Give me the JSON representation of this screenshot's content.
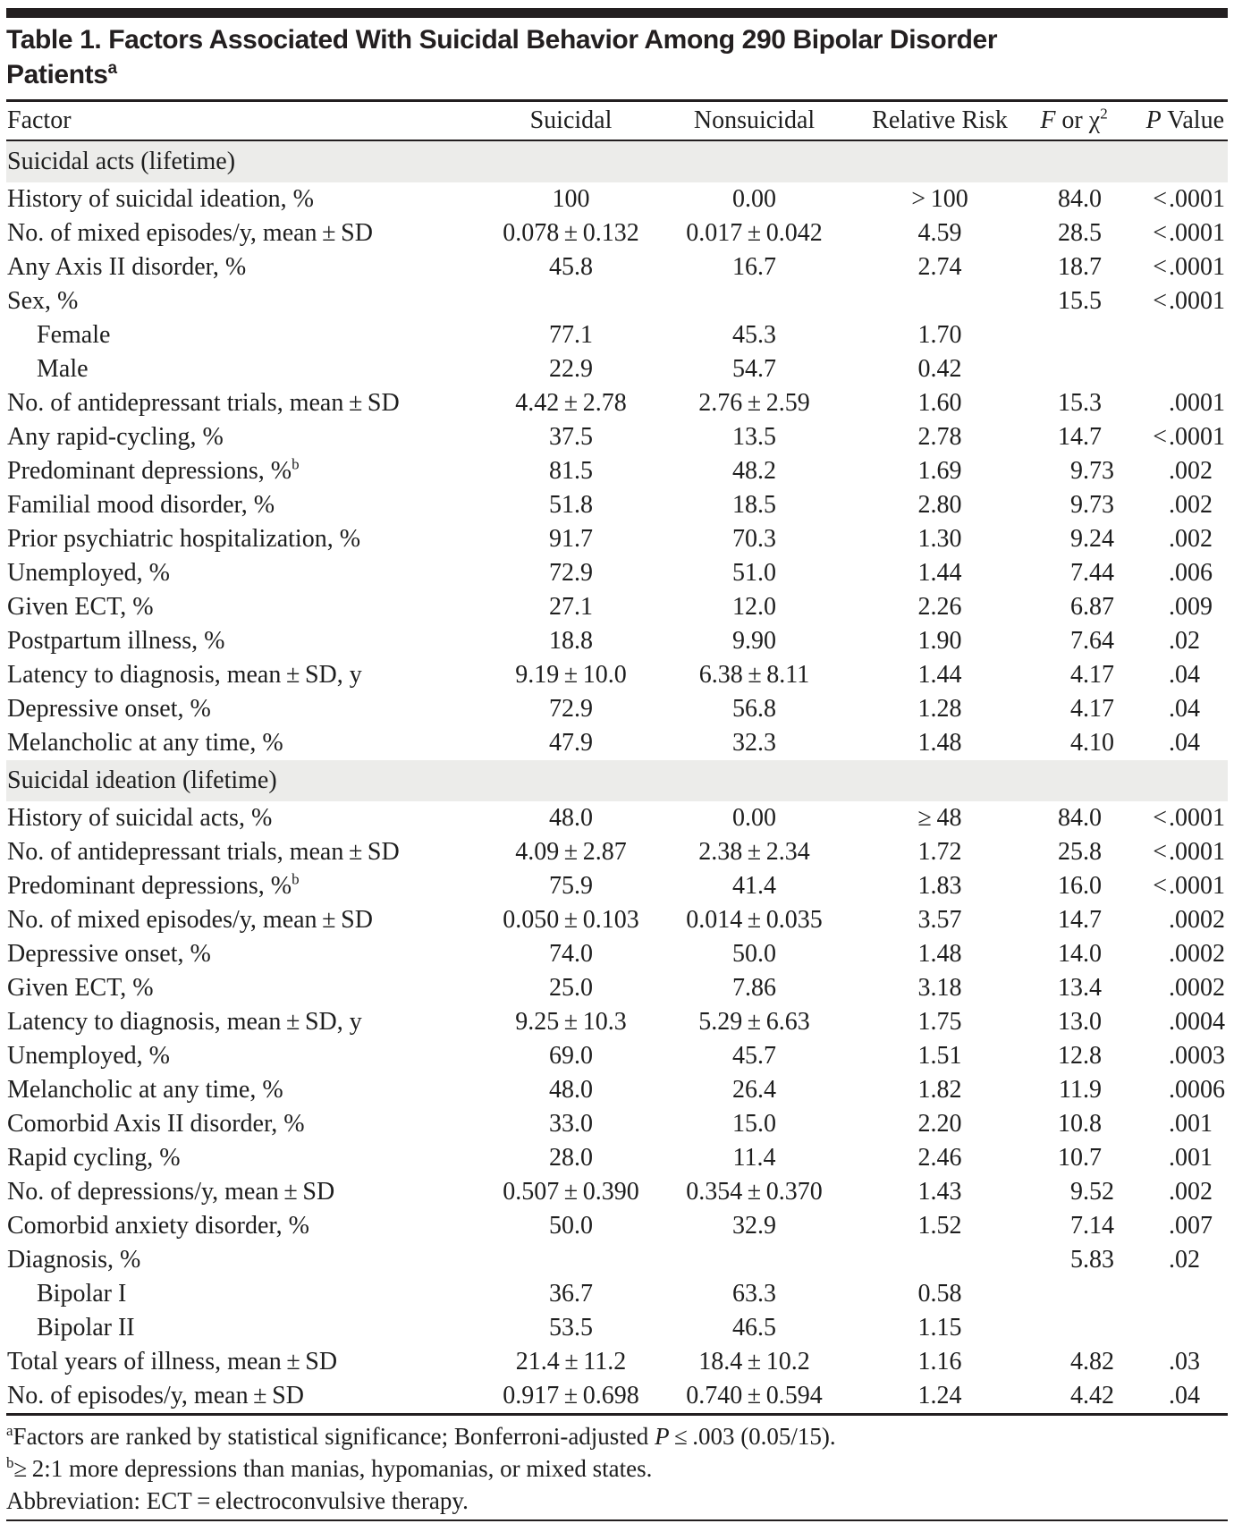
{
  "title": {
    "line1": "Table 1. Factors Associated With Suicidal Behavior Among 290 Bipolar Disorder",
    "line2": "Patients",
    "sup": "a"
  },
  "header": {
    "factor": "Factor",
    "suicidal": "Suicidal",
    "nonsuicidal": "Nonsuicidal",
    "relative_risk": "Relative Risk",
    "f_italic": "F",
    "f_text": " or χ",
    "f_sup": "2",
    "p_italic": "P",
    "p_text": " Value"
  },
  "sections": [
    {
      "header": "Suicidal acts (lifetime)",
      "rows": [
        {
          "factor": "History of suicidal ideation, %",
          "suicidal": "100",
          "nonsuicidal": "0.00",
          "rr": "> 100",
          "f": "84.0",
          "p": "<.0001"
        },
        {
          "factor": "No. of mixed episodes/y, mean ± SD",
          "suicidal": "0.078 ± 0.132",
          "nonsuicidal": "0.017 ± 0.042",
          "rr": "4.59",
          "f": "28.5",
          "p": "<.0001"
        },
        {
          "factor": "Any Axis II disorder, %",
          "suicidal": "45.8",
          "nonsuicidal": "16.7",
          "rr": "2.74",
          "f": "18.7",
          "p": "<.0001"
        },
        {
          "factor": "Sex, %",
          "suicidal": "",
          "nonsuicidal": "",
          "rr": "",
          "f": "15.5",
          "p": "<.0001"
        },
        {
          "factor": "Female",
          "indent": true,
          "suicidal": "77.1",
          "nonsuicidal": "45.3",
          "rr": "1.70",
          "f": "",
          "p": ""
        },
        {
          "factor": "Male",
          "indent": true,
          "suicidal": "22.9",
          "nonsuicidal": "54.7",
          "rr": "0.42",
          "f": "",
          "p": ""
        },
        {
          "factor": "No. of antidepressant trials, mean ± SD",
          "suicidal": "4.42 ± 2.78",
          "nonsuicidal": "2.76 ± 2.59",
          "rr": "1.60",
          "f": "15.3",
          "p": ".0001"
        },
        {
          "factor": "Any rapid-cycling, %",
          "suicidal": "37.5",
          "nonsuicidal": "13.5",
          "rr": "2.78",
          "f": "14.7",
          "p": "<.0001"
        },
        {
          "factor": "Predominant depressions, %",
          "factor_sup": "b",
          "suicidal": "81.5",
          "nonsuicidal": "48.2",
          "rr": "1.69",
          "f": "9.73",
          "p": ".002"
        },
        {
          "factor": "Familial mood disorder, %",
          "suicidal": "51.8",
          "nonsuicidal": "18.5",
          "rr": "2.80",
          "f": "9.73",
          "p": ".002"
        },
        {
          "factor": "Prior psychiatric hospitalization, %",
          "suicidal": "91.7",
          "nonsuicidal": "70.3",
          "rr": "1.30",
          "f": "9.24",
          "p": ".002"
        },
        {
          "factor": "Unemployed, %",
          "suicidal": "72.9",
          "nonsuicidal": "51.0",
          "rr": "1.44",
          "f": "7.44",
          "p": ".006"
        },
        {
          "factor": "Given ECT, %",
          "suicidal": "27.1",
          "nonsuicidal": "12.0",
          "rr": "2.26",
          "f": "6.87",
          "p": ".009"
        },
        {
          "factor": "Postpartum illness, %",
          "suicidal": "18.8",
          "nonsuicidal": "9.90",
          "rr": "1.90",
          "f": "7.64",
          "p": ".02"
        },
        {
          "factor": "Latency to diagnosis, mean ± SD, y",
          "suicidal": "9.19 ± 10.0",
          "nonsuicidal": "6.38 ± 8.11",
          "rr": "1.44",
          "f": "4.17",
          "p": ".04"
        },
        {
          "factor": "Depressive onset, %",
          "suicidal": "72.9",
          "nonsuicidal": "56.8",
          "rr": "1.28",
          "f": "4.17",
          "p": ".04"
        },
        {
          "factor": "Melancholic at any time, %",
          "suicidal": "47.9",
          "nonsuicidal": "32.3",
          "rr": "1.48",
          "f": "4.10",
          "p": ".04"
        }
      ]
    },
    {
      "header": "Suicidal ideation (lifetime)",
      "rows": [
        {
          "factor": "History of suicidal acts, %",
          "suicidal": "48.0",
          "nonsuicidal": "0.00",
          "rr": "≥ 48",
          "f": "84.0",
          "p": "<.0001"
        },
        {
          "factor": "No. of antidepressant trials, mean ± SD",
          "suicidal": "4.09 ± 2.87",
          "nonsuicidal": "2.38 ± 2.34",
          "rr": "1.72",
          "f": "25.8",
          "p": "<.0001"
        },
        {
          "factor": "Predominant depressions, %",
          "factor_sup": "b",
          "suicidal": "75.9",
          "nonsuicidal": "41.4",
          "rr": "1.83",
          "f": "16.0",
          "p": "<.0001"
        },
        {
          "factor": "No. of mixed episodes/y, mean ± SD",
          "suicidal": "0.050 ± 0.103",
          "nonsuicidal": "0.014 ± 0.035",
          "rr": "3.57",
          "f": "14.7",
          "p": ".0002"
        },
        {
          "factor": "Depressive onset, %",
          "suicidal": "74.0",
          "nonsuicidal": "50.0",
          "rr": "1.48",
          "f": "14.0",
          "p": ".0002"
        },
        {
          "factor": "Given ECT, %",
          "suicidal": "25.0",
          "nonsuicidal": "7.86",
          "rr": "3.18",
          "f": "13.4",
          "p": ".0002"
        },
        {
          "factor": "Latency to diagnosis, mean ± SD, y",
          "suicidal": "9.25 ± 10.3",
          "nonsuicidal": "5.29 ± 6.63",
          "rr": "1.75",
          "f": "13.0",
          "p": ".0004"
        },
        {
          "factor": "Unemployed, %",
          "suicidal": "69.0",
          "nonsuicidal": "45.7",
          "rr": "1.51",
          "f": "12.8",
          "p": ".0003"
        },
        {
          "factor": "Melancholic at any time, %",
          "suicidal": "48.0",
          "nonsuicidal": "26.4",
          "rr": "1.82",
          "f": "11.9",
          "p": ".0006"
        },
        {
          "factor": "Comorbid Axis II disorder, %",
          "suicidal": "33.0",
          "nonsuicidal": "15.0",
          "rr": "2.20",
          "f": "10.8",
          "p": ".001"
        },
        {
          "factor": "Rapid cycling, %",
          "suicidal": "28.0",
          "nonsuicidal": "11.4",
          "rr": "2.46",
          "f": "10.7",
          "p": ".001"
        },
        {
          "factor": "No. of depressions/y, mean ± SD",
          "suicidal": "0.507 ± 0.390",
          "nonsuicidal": "0.354 ± 0.370",
          "rr": "1.43",
          "f": "9.52",
          "p": ".002"
        },
        {
          "factor": "Comorbid anxiety disorder, %",
          "suicidal": "50.0",
          "nonsuicidal": "32.9",
          "rr": "1.52",
          "f": "7.14",
          "p": ".007"
        },
        {
          "factor": "Diagnosis, %",
          "suicidal": "",
          "nonsuicidal": "",
          "rr": "",
          "f": "5.83",
          "p": ".02"
        },
        {
          "factor": "Bipolar I",
          "indent": true,
          "suicidal": "36.7",
          "nonsuicidal": "63.3",
          "rr": "0.58",
          "f": "",
          "p": ""
        },
        {
          "factor": "Bipolar II",
          "indent": true,
          "suicidal": "53.5",
          "nonsuicidal": "46.5",
          "rr": "1.15",
          "f": "",
          "p": ""
        },
        {
          "factor": "Total years of illness, mean ± SD",
          "suicidal": "21.4 ± 11.2",
          "nonsuicidal": "18.4 ± 10.2",
          "rr": "1.16",
          "f": "4.82",
          "p": ".03"
        },
        {
          "factor": "No. of episodes/y, mean ± SD",
          "suicidal": "0.917 ± 0.698",
          "nonsuicidal": "0.740 ± 0.594",
          "rr": "1.24",
          "f": "4.42",
          "p": ".04"
        }
      ]
    }
  ],
  "footnotes": [
    {
      "sup": "a",
      "parts": [
        {
          "text": "Factors are ranked by statistical significance; Bonferroni-adjusted "
        },
        {
          "text": "P",
          "italic": true
        },
        {
          "text": " ≤ .003 (0.05/15)."
        }
      ]
    },
    {
      "sup": "b",
      "parts": [
        {
          "text": "≥ 2:1 more depressions than manias, hypomanias, or mixed states."
        }
      ]
    },
    {
      "sup": "",
      "parts": [
        {
          "text": "Abbreviation: ECT = electroconvulsive therapy."
        }
      ]
    }
  ],
  "colors": {
    "rule": "#231f20",
    "band": "#ececea",
    "text": "#1e1e1e",
    "background": "#ffffff"
  }
}
